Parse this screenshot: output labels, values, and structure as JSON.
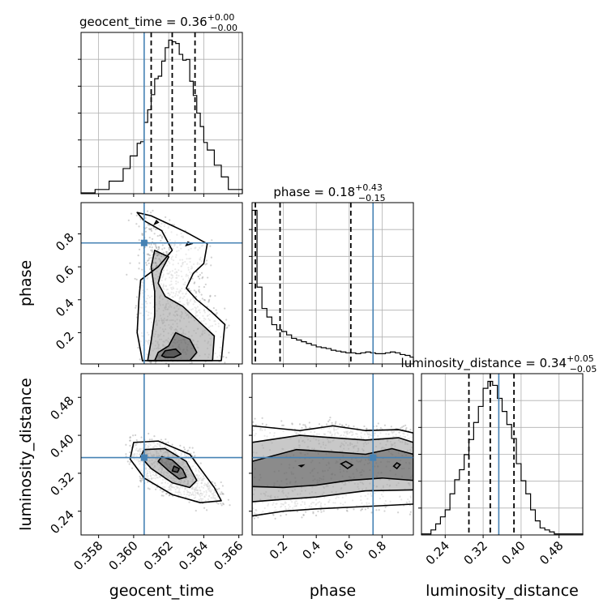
{
  "chart_data": {
    "type": "corner",
    "colors": {
      "truth": "#4682b4",
      "hist": "#000000",
      "grid": "#b0b0b0",
      "scatter": "#9a9a9a"
    },
    "parameters": [
      "geocent_time",
      "phase",
      "luminosity_distance"
    ],
    "axis_labels": [
      "geocent_time",
      "phase",
      "luminosity_distance"
    ],
    "ranges": {
      "geocent_time": [
        0.357,
        0.3662
      ],
      "phase": [
        0.01,
        0.99
      ],
      "luminosity_distance": [
        0.19,
        0.53
      ]
    },
    "truths": {
      "geocent_time": 0.3606,
      "phase": 0.745,
      "luminosity_distance": 0.353
    },
    "titles": [
      {
        "param": "geocent_time",
        "text": "geocent_time = 0.36",
        "plus": "+0.00",
        "minus": "−0.00"
      },
      {
        "param": "phase",
        "text": "phase = 0.18",
        "plus": "+0.43",
        "minus": "−0.15"
      },
      {
        "param": "luminosity_distance",
        "text": "luminosity_distance = 0.34",
        "plus": "+0.05",
        "minus": "−0.05"
      }
    ],
    "quantiles": {
      "geocent_time": [
        0.361,
        0.3622,
        0.3635
      ],
      "phase": [
        0.03,
        0.18,
        0.61
      ],
      "luminosity_distance": [
        0.29,
        0.335,
        0.385
      ]
    },
    "ticks": {
      "geocent_time": {
        "values": [
          0.358,
          0.36,
          0.362,
          0.364,
          0.366
        ],
        "labels": [
          "0.358",
          "0.360",
          "0.362",
          "0.364",
          "0.366"
        ]
      },
      "phase": {
        "values": [
          0.2,
          0.4,
          0.6,
          0.8
        ],
        "labels": [
          "0.2",
          "0.4",
          "0.6",
          "0.8"
        ]
      },
      "luminosity_distance": {
        "values": [
          0.24,
          0.32,
          0.4,
          0.48
        ],
        "labels": [
          "0.24",
          "0.32",
          "0.40",
          "0.48"
        ]
      }
    },
    "histograms": {
      "geocent_time": {
        "edges": [
          0.357,
          0.3578,
          0.3586,
          0.3594,
          0.3598,
          0.3602,
          0.3604,
          0.3606,
          0.3608,
          0.361,
          0.3612,
          0.3614,
          0.3616,
          0.3618,
          0.362,
          0.3622,
          0.3624,
          0.3626,
          0.3628,
          0.363,
          0.3632,
          0.3634,
          0.3636,
          0.3638,
          0.364,
          0.3642,
          0.3646,
          0.365,
          0.3654,
          0.3662
        ],
        "counts": [
          1,
          5,
          15,
          30,
          45,
          60,
          62,
          85,
          100,
          118,
          137,
          140,
          158,
          174,
          183,
          181,
          179,
          166,
          159,
          160,
          134,
          117,
          96,
          80,
          61,
          52,
          34,
          20,
          5
        ]
      },
      "phase": {
        "edges": [
          0.01,
          0.04,
          0.07,
          0.1,
          0.13,
          0.16,
          0.19,
          0.22,
          0.25,
          0.28,
          0.31,
          0.34,
          0.37,
          0.4,
          0.43,
          0.46,
          0.49,
          0.52,
          0.55,
          0.58,
          0.61,
          0.64,
          0.67,
          0.7,
          0.73,
          0.76,
          0.79,
          0.82,
          0.85,
          0.88,
          0.91,
          0.94,
          0.97,
          0.99
        ],
        "counts": [
          180,
          90,
          65,
          55,
          46,
          40,
          38,
          34,
          30,
          28,
          26,
          24,
          22,
          20,
          19,
          18,
          16,
          15,
          14,
          13,
          13,
          12,
          13,
          14,
          13,
          12,
          12,
          13,
          14,
          13,
          11,
          10,
          8
        ]
      },
      "luminosity_distance": {
        "edges": [
          0.19,
          0.21,
          0.22,
          0.23,
          0.24,
          0.25,
          0.26,
          0.27,
          0.28,
          0.29,
          0.3,
          0.31,
          0.32,
          0.33,
          0.34,
          0.35,
          0.36,
          0.37,
          0.38,
          0.39,
          0.4,
          0.41,
          0.42,
          0.43,
          0.44,
          0.45,
          0.46,
          0.47,
          0.49,
          0.53
        ],
        "counts": [
          1,
          5,
          11,
          18,
          25,
          41,
          55,
          65,
          80,
          95,
          112,
          128,
          146,
          153,
          149,
          136,
          123,
          110,
          96,
          71,
          54,
          41,
          25,
          14,
          7,
          5,
          3,
          1,
          1
        ]
      }
    },
    "panels_2d": [
      {
        "x": "geocent_time",
        "y": "phase",
        "scatter_center": {
          "x": 0.3622,
          "y": 0.45
        },
        "contours": [
          [
            [
              0.3618,
              0.05
            ],
            [
              0.3623,
              0.05
            ],
            [
              0.3627,
              0.07
            ],
            [
              0.3624,
              0.1
            ],
            [
              0.3618,
              0.09
            ],
            [
              0.3616,
              0.06
            ]
          ],
          [
            [
              0.3612,
              0.03
            ],
            [
              0.3632,
              0.03
            ],
            [
              0.3636,
              0.08
            ],
            [
              0.3632,
              0.16
            ],
            [
              0.3624,
              0.2
            ],
            [
              0.362,
              0.12
            ],
            [
              0.3614,
              0.08
            ]
          ],
          [
            [
              0.3608,
              0.03
            ],
            [
              0.3645,
              0.03
            ],
            [
              0.3646,
              0.18
            ],
            [
              0.3636,
              0.28
            ],
            [
              0.3628,
              0.36
            ],
            [
              0.3618,
              0.42
            ],
            [
              0.3614,
              0.5
            ],
            [
              0.3616,
              0.58
            ],
            [
              0.362,
              0.66
            ],
            [
              0.3612,
              0.7
            ],
            [
              0.361,
              0.6
            ],
            [
              0.3612,
              0.45
            ],
            [
              0.3612,
              0.3
            ],
            [
              0.361,
              0.15
            ]
          ],
          [
            [
              0.3605,
              0.03
            ],
            [
              0.365,
              0.03
            ],
            [
              0.3652,
              0.25
            ],
            [
              0.3644,
              0.33
            ],
            [
              0.3636,
              0.4
            ],
            [
              0.363,
              0.47
            ],
            [
              0.3634,
              0.56
            ],
            [
              0.364,
              0.62
            ],
            [
              0.3642,
              0.74
            ],
            [
              0.363,
              0.81
            ],
            [
              0.362,
              0.86
            ],
            [
              0.361,
              0.91
            ],
            [
              0.3602,
              0.93
            ],
            [
              0.3606,
              0.88
            ],
            [
              0.3616,
              0.82
            ],
            [
              0.3622,
              0.7
            ],
            [
              0.3614,
              0.6
            ],
            [
              0.3604,
              0.52
            ],
            [
              0.3603,
              0.4
            ],
            [
              0.3602,
              0.2
            ]
          ]
        ],
        "small_contours": [
          [
            [
              0.3612,
              0.86
            ],
            [
              0.3614,
              0.87
            ],
            [
              0.3613,
              0.88
            ]
          ],
          [
            [
              0.363,
              0.73
            ],
            [
              0.3633,
              0.74
            ],
            [
              0.3631,
              0.75
            ]
          ]
        ]
      },
      {
        "x": "geocent_time",
        "y": "luminosity_distance",
        "scatter_center": {
          "x": 0.3623,
          "y": 0.335
        },
        "contours": [
          [
            [
              0.3622,
              0.325
            ],
            [
              0.3625,
              0.322
            ],
            [
              0.3626,
              0.33
            ],
            [
              0.3623,
              0.335
            ]
          ],
          [
            [
              0.3616,
              0.355
            ],
            [
              0.3622,
              0.348
            ],
            [
              0.3628,
              0.328
            ],
            [
              0.363,
              0.312
            ],
            [
              0.3626,
              0.308
            ],
            [
              0.362,
              0.325
            ],
            [
              0.3614,
              0.345
            ]
          ],
          [
            [
              0.3606,
              0.37
            ],
            [
              0.3618,
              0.372
            ],
            [
              0.363,
              0.345
            ],
            [
              0.3636,
              0.305
            ],
            [
              0.3632,
              0.29
            ],
            [
              0.3622,
              0.3
            ],
            [
              0.361,
              0.33
            ],
            [
              0.3604,
              0.355
            ]
          ],
          [
            [
              0.36,
              0.385
            ],
            [
              0.3614,
              0.388
            ],
            [
              0.3632,
              0.36
            ],
            [
              0.3646,
              0.29
            ],
            [
              0.365,
              0.262
            ],
            [
              0.3638,
              0.258
            ],
            [
              0.3622,
              0.275
            ],
            [
              0.3606,
              0.31
            ],
            [
              0.3598,
              0.35
            ]
          ]
        ],
        "small_contours": []
      },
      {
        "x": "phase",
        "y": "luminosity_distance",
        "scatter_center": {
          "x": 0.4,
          "y": 0.335
        },
        "contours": [
          [
            [
              0.01,
              0.345
            ],
            [
              0.28,
              0.37
            ],
            [
              0.5,
              0.365
            ],
            [
              0.7,
              0.36
            ],
            [
              0.86,
              0.372
            ],
            [
              0.99,
              0.36
            ],
            [
              0.99,
              0.305
            ],
            [
              0.8,
              0.31
            ],
            [
              0.6,
              0.305
            ],
            [
              0.4,
              0.295
            ],
            [
              0.2,
              0.29
            ],
            [
              0.01,
              0.292
            ]
          ],
          [
            [
              0.01,
              0.385
            ],
            [
              0.3,
              0.4
            ],
            [
              0.5,
              0.395
            ],
            [
              0.7,
              0.39
            ],
            [
              0.9,
              0.395
            ],
            [
              0.99,
              0.385
            ],
            [
              0.99,
              0.285
            ],
            [
              0.7,
              0.283
            ],
            [
              0.4,
              0.27
            ],
            [
              0.2,
              0.265
            ],
            [
              0.01,
              0.26
            ]
          ],
          [
            [
              0.01,
              0.42
            ],
            [
              0.3,
              0.41
            ],
            [
              0.5,
              0.42
            ],
            [
              0.7,
              0.41
            ],
            [
              0.9,
              0.412
            ],
            [
              0.99,
              0.405
            ],
            [
              0.99,
              0.255
            ],
            [
              0.7,
              0.25
            ],
            [
              0.4,
              0.245
            ],
            [
              0.2,
              0.24
            ],
            [
              0.01,
              0.23
            ]
          ]
        ],
        "small_contours": [
          [
            [
              0.55,
              0.34
            ],
            [
              0.59,
              0.33
            ],
            [
              0.62,
              0.337
            ],
            [
              0.58,
              0.345
            ]
          ],
          [
            [
              0.87,
              0.335
            ],
            [
              0.89,
              0.33
            ],
            [
              0.91,
              0.338
            ],
            [
              0.89,
              0.342
            ]
          ],
          [
            [
              0.3,
              0.336
            ],
            [
              0.31,
              0.334
            ],
            [
              0.32,
              0.337
            ]
          ]
        ]
      }
    ]
  }
}
